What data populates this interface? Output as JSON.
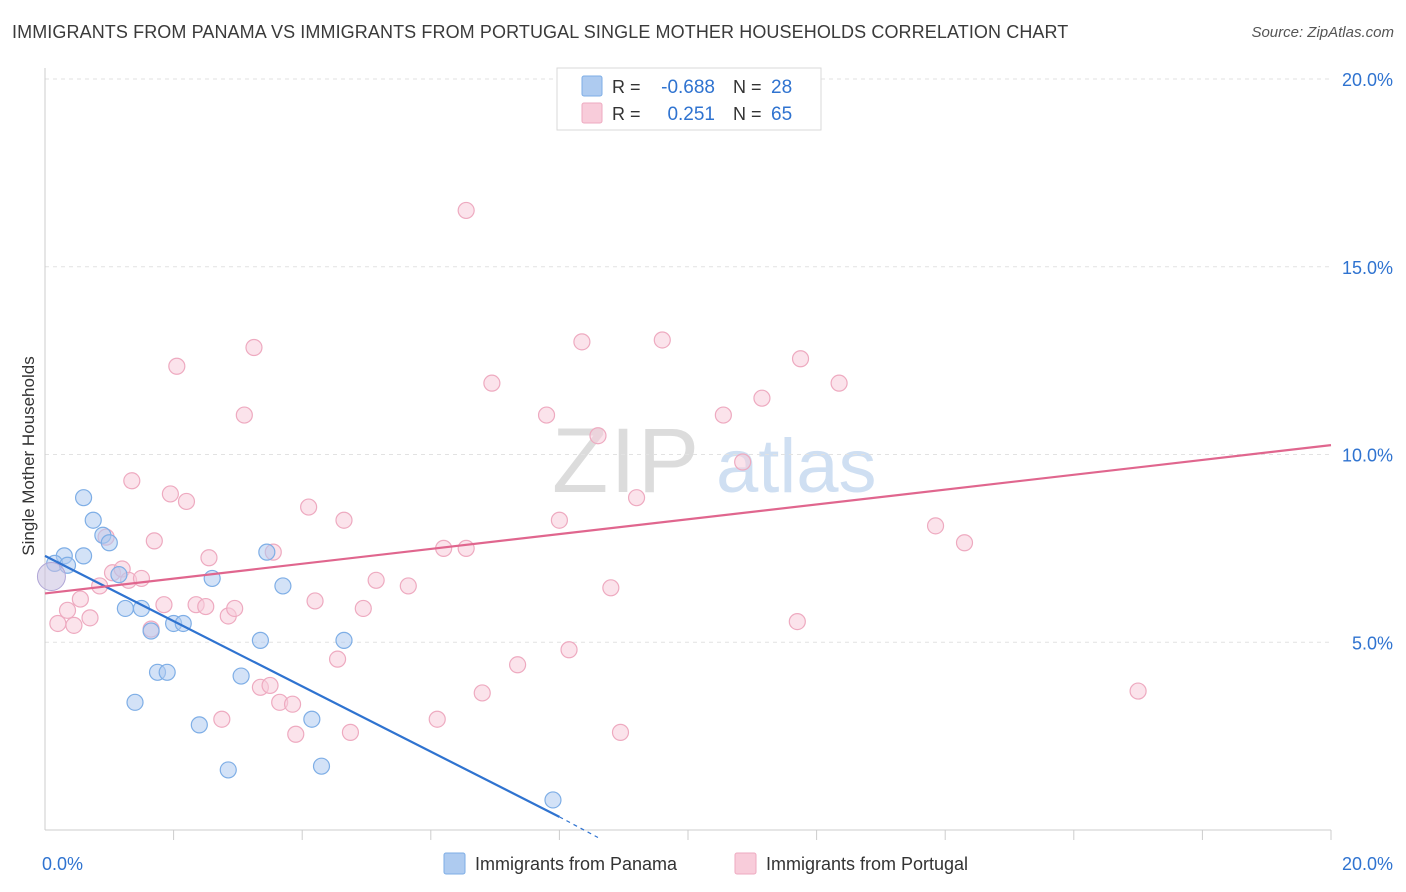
{
  "chart_data": {
    "type": "scatter",
    "title": "IMMIGRANTS FROM PANAMA VS IMMIGRANTS FROM PORTUGAL SINGLE MOTHER HOUSEHOLDS CORRELATION CHART",
    "source": "Source: ZipAtlas.com",
    "watermark": {
      "zip": "ZIP",
      "atlas": "atlas"
    },
    "xlabel": "",
    "ylabel": "Single Mother Households",
    "xlim": [
      0,
      20
    ],
    "ylim": [
      0,
      20
    ],
    "x_tick_labels": [
      {
        "value": 0,
        "label": "0.0%"
      },
      {
        "value": 20,
        "label": "20.0%"
      }
    ],
    "y_tick_labels": [
      {
        "value": 5,
        "label": "5.0%"
      },
      {
        "value": 10,
        "label": "10.0%"
      },
      {
        "value": 15,
        "label": "15.0%"
      },
      {
        "value": 20,
        "label": "20.0%"
      }
    ],
    "legend_box": [
      {
        "r_label": "R =",
        "r_value": "-0.688",
        "n_label": "N =",
        "n_value": "28",
        "series": "panama"
      },
      {
        "r_label": "R =",
        "r_value": "0.251",
        "n_label": "N =",
        "n_value": "65",
        "series": "portugal"
      }
    ],
    "series": [
      {
        "name": "Immigrants from Panama",
        "key": "panama",
        "color": "#7eaee6",
        "fill": "#aecbf0",
        "line_color": "#2f73d0",
        "trend": {
          "x0": 0,
          "y0": 7.3,
          "x1": 8.0,
          "y1": 0.35,
          "dash_to_x": 8.6,
          "dash_to_y": -0.2
        },
        "points": [
          [
            0.3,
            7.3
          ],
          [
            0.15,
            7.1
          ],
          [
            0.35,
            7.05
          ],
          [
            0.6,
            7.3
          ],
          [
            0.6,
            8.85
          ],
          [
            0.75,
            8.25
          ],
          [
            0.9,
            7.85
          ],
          [
            1.0,
            7.65
          ],
          [
            1.15,
            6.8
          ],
          [
            1.25,
            5.9
          ],
          [
            1.5,
            5.9
          ],
          [
            1.65,
            5.3
          ],
          [
            1.75,
            4.2
          ],
          [
            1.9,
            4.2
          ],
          [
            2.0,
            5.5
          ],
          [
            2.15,
            5.5
          ],
          [
            1.4,
            3.4
          ],
          [
            2.4,
            2.8
          ],
          [
            2.6,
            6.7
          ],
          [
            2.85,
            1.6
          ],
          [
            3.05,
            4.1
          ],
          [
            3.35,
            5.05
          ],
          [
            3.45,
            7.4
          ],
          [
            3.7,
            6.5
          ],
          [
            4.15,
            2.95
          ],
          [
            4.3,
            1.7
          ],
          [
            4.65,
            5.05
          ],
          [
            7.9,
            0.8
          ]
        ]
      },
      {
        "name": "Immigrants from Portugal",
        "key": "portugal",
        "color": "#eeaac0",
        "fill": "#f8ccda",
        "line_color": "#e0668e",
        "trend": {
          "x0": 0,
          "y0": 6.3,
          "x1": 20,
          "y1": 10.25
        },
        "points": [
          [
            0.2,
            5.5
          ],
          [
            0.35,
            5.85
          ],
          [
            0.45,
            5.45
          ],
          [
            0.55,
            6.15
          ],
          [
            0.7,
            5.65
          ],
          [
            0.85,
            6.5
          ],
          [
            0.95,
            7.8
          ],
          [
            1.05,
            6.85
          ],
          [
            1.2,
            6.95
          ],
          [
            1.3,
            6.65
          ],
          [
            1.35,
            9.3
          ],
          [
            1.5,
            6.7
          ],
          [
            1.65,
            5.35
          ],
          [
            1.7,
            7.7
          ],
          [
            1.85,
            6.0
          ],
          [
            1.95,
            8.95
          ],
          [
            2.05,
            12.35
          ],
          [
            2.2,
            8.75
          ],
          [
            2.35,
            6.0
          ],
          [
            2.5,
            5.95
          ],
          [
            2.55,
            7.25
          ],
          [
            2.75,
            2.95
          ],
          [
            2.85,
            5.7
          ],
          [
            2.95,
            5.9
          ],
          [
            3.1,
            11.05
          ],
          [
            3.25,
            12.85
          ],
          [
            3.35,
            3.8
          ],
          [
            3.5,
            3.85
          ],
          [
            3.55,
            7.4
          ],
          [
            3.65,
            3.4
          ],
          [
            3.85,
            3.35
          ],
          [
            3.9,
            2.55
          ],
          [
            4.1,
            8.6
          ],
          [
            4.2,
            6.1
          ],
          [
            4.55,
            4.55
          ],
          [
            4.65,
            8.25
          ],
          [
            4.75,
            2.6
          ],
          [
            4.95,
            5.9
          ],
          [
            5.15,
            6.65
          ],
          [
            5.65,
            6.5
          ],
          [
            6.1,
            2.95
          ],
          [
            6.2,
            7.5
          ],
          [
            6.55,
            7.5
          ],
          [
            6.55,
            16.5
          ],
          [
            6.8,
            3.65
          ],
          [
            6.95,
            11.9
          ],
          [
            7.35,
            4.4
          ],
          [
            7.8,
            11.05
          ],
          [
            8.0,
            8.25
          ],
          [
            8.15,
            4.8
          ],
          [
            8.35,
            13.0
          ],
          [
            8.6,
            10.5
          ],
          [
            8.8,
            6.45
          ],
          [
            8.95,
            2.6
          ],
          [
            9.2,
            8.85
          ],
          [
            9.6,
            13.05
          ],
          [
            10.55,
            11.05
          ],
          [
            10.85,
            9.8
          ],
          [
            11.15,
            11.5
          ],
          [
            11.7,
            5.55
          ],
          [
            11.75,
            12.55
          ],
          [
            12.35,
            11.9
          ],
          [
            13.85,
            8.1
          ],
          [
            14.3,
            7.65
          ],
          [
            17.0,
            3.7
          ]
        ]
      }
    ]
  }
}
